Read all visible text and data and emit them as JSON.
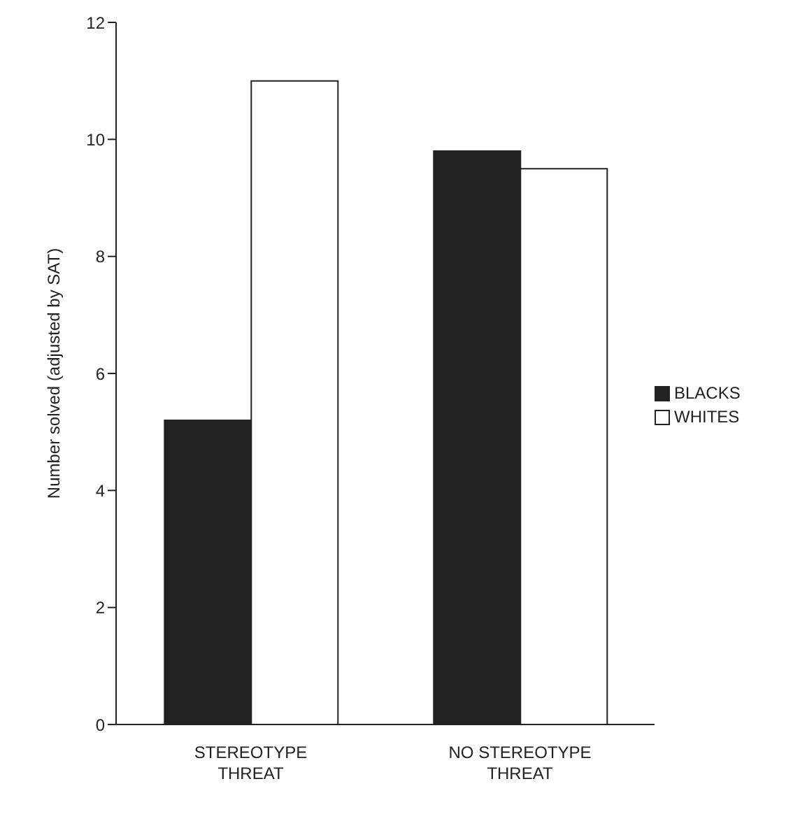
{
  "chart_data": {
    "type": "bar",
    "ylabel": "Number solved (adjusted by SAT)",
    "categories": [
      "STEREOTYPE THREAT",
      "NO STEREOTYPE THREAT"
    ],
    "series": [
      {
        "name": "BLACKS",
        "color": "#222222",
        "values": [
          5.2,
          9.8
        ]
      },
      {
        "name": "WHITES",
        "color": "#ffffff",
        "values": [
          11.0,
          9.5
        ]
      }
    ],
    "ylim": [
      0,
      12
    ],
    "yticks": [
      0,
      2,
      4,
      6,
      8,
      10,
      12
    ],
    "grid": false,
    "legend": "right"
  }
}
